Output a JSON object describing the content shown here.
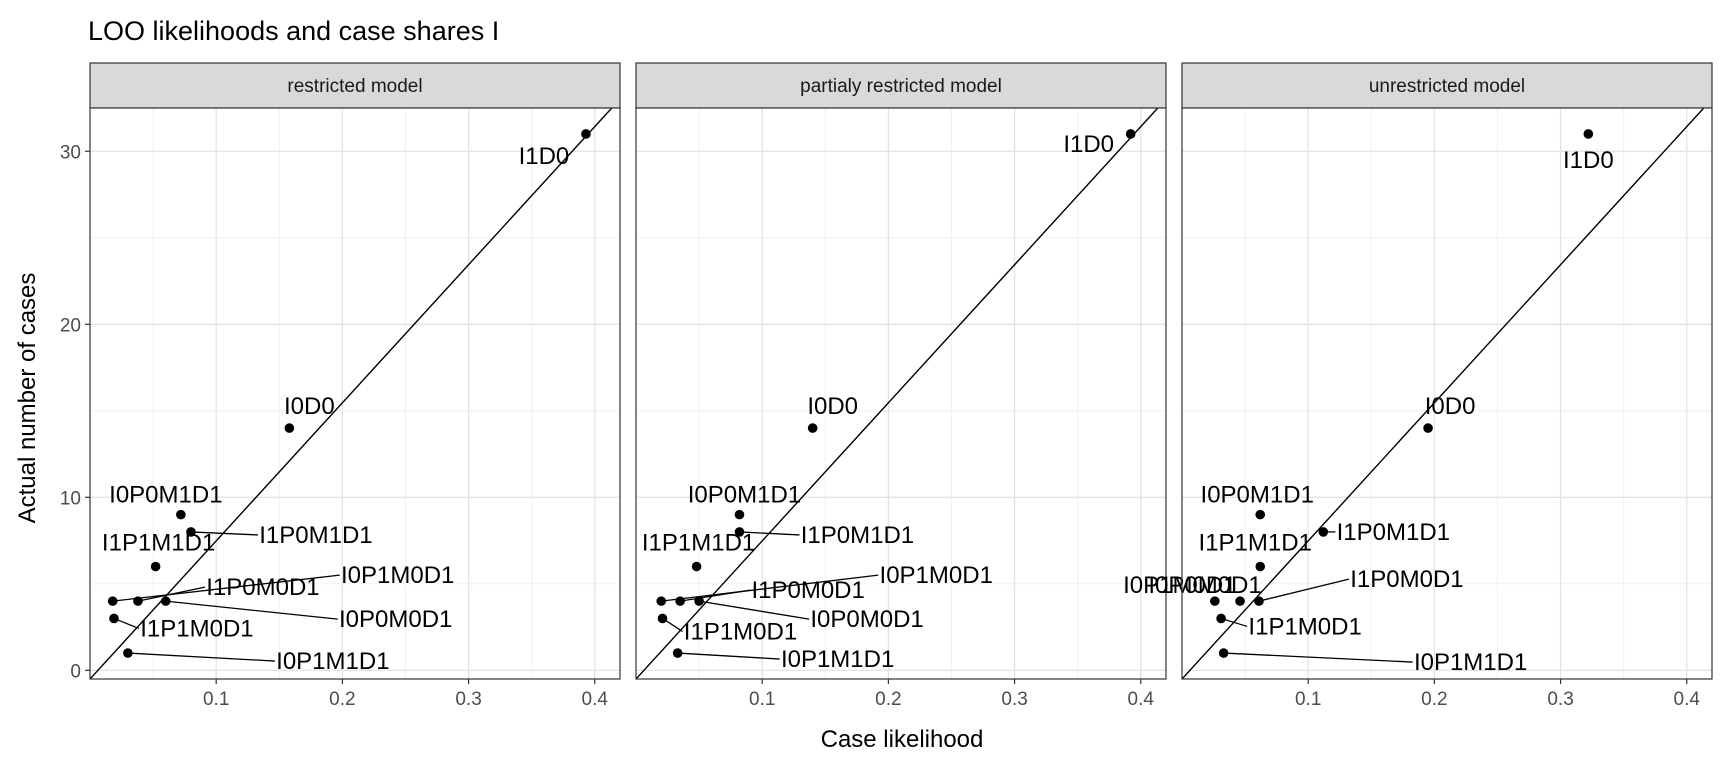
{
  "title": "LOO likelihoods and case shares I",
  "xlabel": "Case likelihood",
  "ylabel": "Actual number of cases",
  "chart_data": {
    "type": "scatter",
    "title": "LOO likelihoods and case shares I",
    "xlabel": "Case likelihood",
    "ylabel": "Actual number of cases",
    "xlim": [
      0.0,
      0.42
    ],
    "ylim": [
      -0.5,
      32.5
    ],
    "x_ticks": [
      0.1,
      0.2,
      0.3,
      0.4
    ],
    "x_tick_labels": [
      "0.1",
      "0.2",
      "0.3",
      "0.4"
    ],
    "y_ticks": [
      0,
      10,
      20,
      30
    ],
    "y_tick_labels": [
      "0",
      "10",
      "20",
      "30"
    ],
    "grid": true,
    "reference_line": "y = 78.6 * x",
    "facets": [
      {
        "name": "restricted model",
        "points": [
          {
            "label": "I1D0",
            "x": 0.393,
            "y": 31
          },
          {
            "label": "I0D0",
            "x": 0.158,
            "y": 14
          },
          {
            "label": "I0P0M1D1",
            "x": 0.072,
            "y": 9
          },
          {
            "label": "I1P0M1D1",
            "x": 0.08,
            "y": 8
          },
          {
            "label": "I1P1M1D1",
            "x": 0.052,
            "y": 6
          },
          {
            "label": "I1P0M0D1",
            "x": 0.038,
            "y": 4
          },
          {
            "label": "I0P1M0D1",
            "x": 0.018,
            "y": 4
          },
          {
            "label": "I0P0M0D1",
            "x": 0.06,
            "y": 4
          },
          {
            "label": "I1P1M0D1",
            "x": 0.019,
            "y": 3
          },
          {
            "label": "I0P1M1D1",
            "x": 0.03,
            "y": 1
          }
        ]
      },
      {
        "name": "partialy restricted model",
        "points": [
          {
            "label": "I1D0",
            "x": 0.392,
            "y": 31
          },
          {
            "label": "I0D0",
            "x": 0.14,
            "y": 14
          },
          {
            "label": "I0P0M1D1",
            "x": 0.082,
            "y": 9
          },
          {
            "label": "I1P0M1D1",
            "x": 0.082,
            "y": 8
          },
          {
            "label": "I1P1M1D1",
            "x": 0.048,
            "y": 6
          },
          {
            "label": "I1P0M0D1",
            "x": 0.035,
            "y": 4
          },
          {
            "label": "I0P1M1D1",
            "x": 0.033,
            "y": 1
          },
          {
            "label": "I0P1M0D1",
            "x": 0.02,
            "y": 4
          },
          {
            "label": "I0P0M0D1",
            "x": 0.05,
            "y": 4
          },
          {
            "label": "I1P1M0D1",
            "x": 0.021,
            "y": 3
          }
        ]
      },
      {
        "name": "unrestricted model",
        "points": [
          {
            "label": "I1D0",
            "x": 0.322,
            "y": 31
          },
          {
            "label": "I0D0",
            "x": 0.195,
            "y": 14
          },
          {
            "label": "I0P0M1D1",
            "x": 0.062,
            "y": 9
          },
          {
            "label": "I1P0M1D1",
            "x": 0.112,
            "y": 8
          },
          {
            "label": "I1P1M1D1",
            "x": 0.062,
            "y": 6
          },
          {
            "label": "I0P0M0D1",
            "x": 0.046,
            "y": 4
          },
          {
            "label": "I0P1M0D1",
            "x": 0.026,
            "y": 4
          },
          {
            "label": "I1P0M0D1",
            "x": 0.061,
            "y": 4
          },
          {
            "label": "I1P1M0D1",
            "x": 0.031,
            "y": 3
          },
          {
            "label": "I0P1M1D1",
            "x": 0.033,
            "y": 1
          }
        ]
      }
    ]
  }
}
